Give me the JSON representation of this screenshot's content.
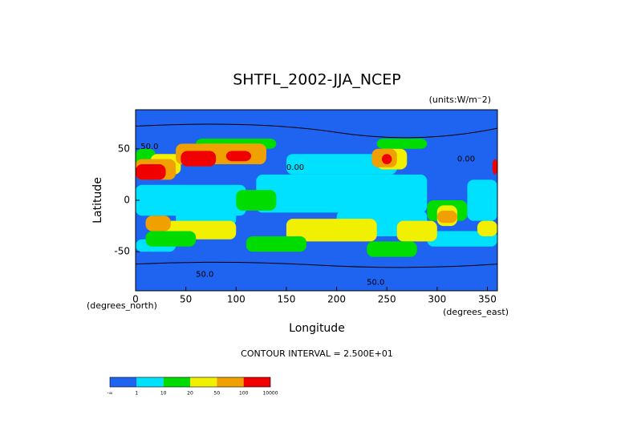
{
  "title": "SHTFL_2002-JJA_NCEP",
  "units": "(units:W/m⁻2)",
  "ylabel": "Latitude",
  "xlabel": "Longitude",
  "x_unit_label": "(degrees_east)",
  "y_unit_label": "(degrees_north)",
  "xlim": [
    0,
    360
  ],
  "ylim": [
    -88,
    88
  ],
  "xticks": [
    0,
    50,
    100,
    150,
    200,
    250,
    300,
    350
  ],
  "yticks": [
    -50,
    0,
    50
  ],
  "contour_labels": [
    "50.0",
    "0.00",
    "0.00",
    "50.0",
    "50.0"
  ],
  "contour_interval": "CONTOUR INTERVAL = 2.500E+01",
  "colorbar": {
    "colors": [
      "#1e64f0",
      "#00e0ff",
      "#00dc00",
      "#f0f000",
      "#f0a000",
      "#f00000"
    ],
    "labels": [
      "-∞",
      "1",
      "10",
      "20",
      "50",
      "100",
      "10000"
    ]
  }
}
